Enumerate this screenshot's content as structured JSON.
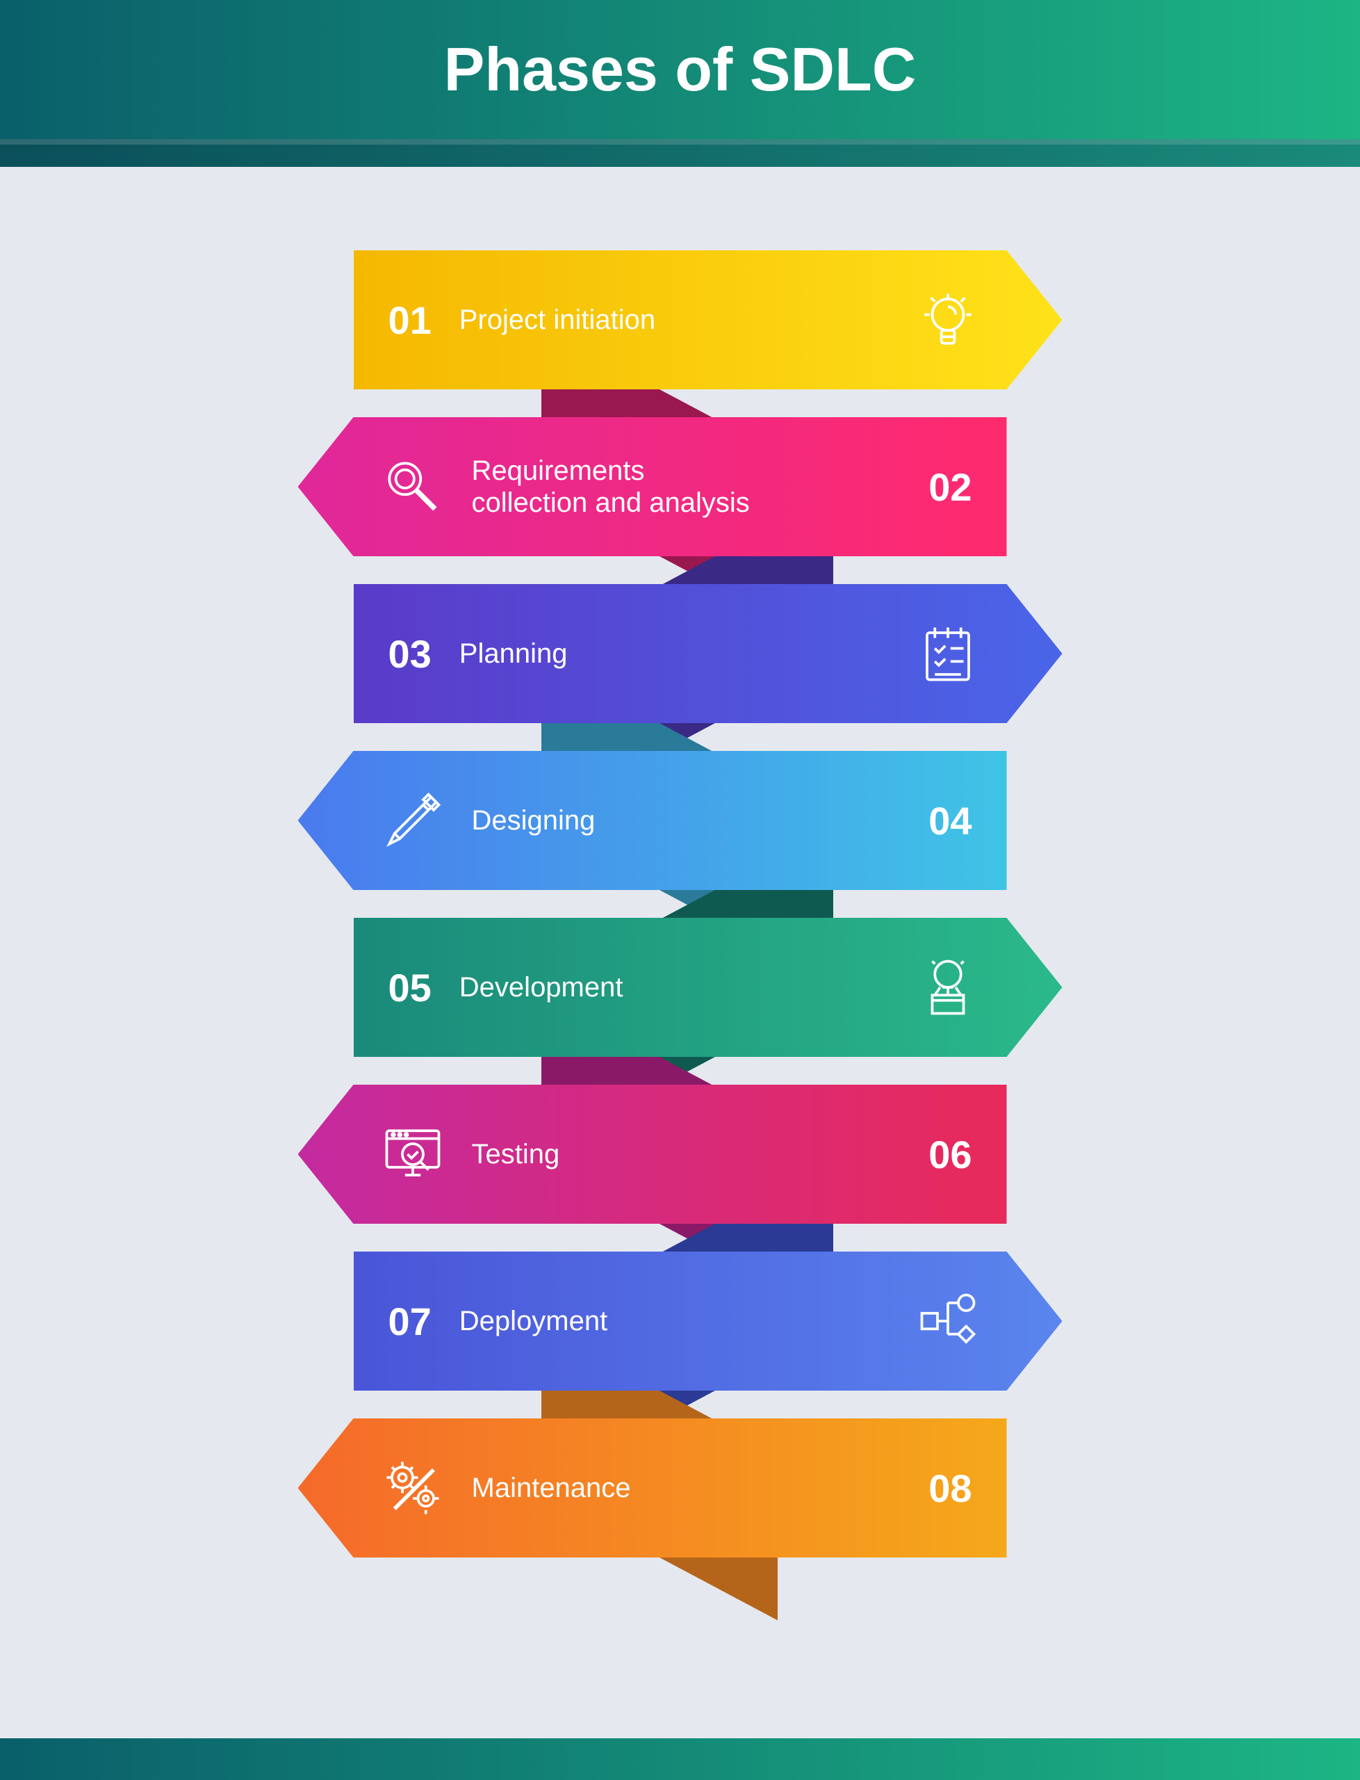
{
  "title": "Phases of SDLC",
  "header_gradient": [
    "#0a5f6a",
    "#1db584"
  ],
  "background_color": "#e5e9ef",
  "title_color": "#ffffff",
  "title_fontsize": 88,
  "phases": [
    {
      "num": "01",
      "label": "Project initiation",
      "direction": "right",
      "gradient": [
        "#f5b800",
        "#ffe21a"
      ],
      "connector": "#c28a0a",
      "icon": "lightbulb"
    },
    {
      "num": "02",
      "label": "Requirements collection and analysis",
      "direction": "left",
      "gradient": [
        "#ff2a6d",
        "#e0289a"
      ],
      "connector": "#9a1850",
      "icon": "magnifier"
    },
    {
      "num": "03",
      "label": "Planning",
      "direction": "right",
      "gradient": [
        "#5a3bc9",
        "#4a65e8"
      ],
      "connector": "#3a2a85",
      "icon": "checklist"
    },
    {
      "num": "04",
      "label": "Designing",
      "direction": "left",
      "gradient": [
        "#3fc4e6",
        "#4a7aee"
      ],
      "connector": "#2a7a9a",
      "icon": "pencil"
    },
    {
      "num": "05",
      "label": "Development",
      "direction": "right",
      "gradient": [
        "#1a8a7a",
        "#2bb98a"
      ],
      "connector": "#0f5a50",
      "icon": "bulb-box"
    },
    {
      "num": "06",
      "label": "Testing",
      "direction": "left",
      "gradient": [
        "#e82a5a",
        "#c42aa0"
      ],
      "connector": "#8a1a68",
      "icon": "monitor-check"
    },
    {
      "num": "07",
      "label": "Deployment",
      "direction": "right",
      "gradient": [
        "#4a55d8",
        "#5a85ee"
      ],
      "connector": "#2a3a95",
      "icon": "flowchart"
    },
    {
      "num": "08",
      "label": "Maintenance",
      "direction": "left",
      "gradient": [
        "#f5a81a",
        "#f56a2a"
      ],
      "connector": "#b5651a",
      "icon": "gears"
    }
  ],
  "arrow_height": 200,
  "arrow_width": 1020,
  "label_fontsize": 40,
  "num_fontsize": 56,
  "icon_size": 90,
  "footer_gradient": [
    "#0a5f6a",
    "#1db584"
  ]
}
